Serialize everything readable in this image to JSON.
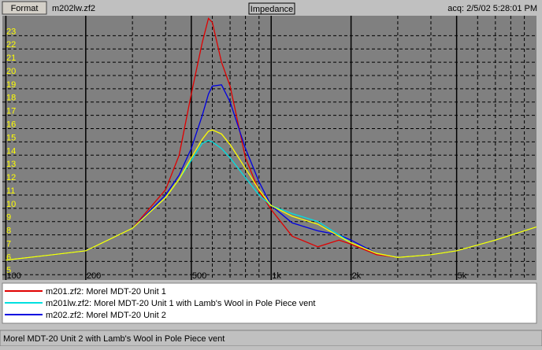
{
  "toolbar": {
    "button": "Format",
    "file": "m202lw.zf2",
    "mode": "Impedance",
    "acq": "acq: 2/5/02 5:28:01 PM"
  },
  "chart_data": {
    "type": "line",
    "xscale": "log",
    "grid": true,
    "xlim": [
      97,
      10000
    ],
    "ylim": [
      4.6,
      24.5
    ],
    "xticks": [
      {
        "value": 100,
        "label": "100"
      },
      {
        "value": 200,
        "label": "200"
      },
      {
        "value": 500,
        "label": "500"
      },
      {
        "value": 1000,
        "label": "1k"
      },
      {
        "value": 2000,
        "label": "2k"
      },
      {
        "value": 5000,
        "label": "5k"
      }
    ],
    "xgrid": [
      300,
      400,
      600,
      700,
      800,
      900,
      3000,
      4000,
      6000,
      7000,
      8000,
      9000
    ],
    "yticks": [
      5,
      6,
      7,
      8,
      9,
      10,
      11,
      12,
      13,
      14,
      15,
      16,
      17,
      18,
      19,
      20,
      21,
      22,
      23
    ],
    "x": [
      100,
      150,
      200,
      300,
      400,
      450,
      500,
      550,
      580,
      600,
      650,
      700,
      800,
      900,
      1000,
      1200,
      1500,
      1800,
      2000,
      2500,
      3000,
      4000,
      5000,
      7000,
      10000
    ],
    "series": [
      {
        "name": "m201.zf2:  Morel MDT-20 Unit 1",
        "color": "#e00000",
        "legend": true,
        "values": [
          6.1,
          6.5,
          6.8,
          8.5,
          11.4,
          14,
          18.6,
          22.5,
          24.3,
          24,
          21,
          19.2,
          13.8,
          11.3,
          9.9,
          7.9,
          7.1,
          7.6,
          7.3,
          6.5,
          6.3,
          6.5,
          6.8,
          7.6,
          8.6
        ]
      },
      {
        "name": "m201lw.zf2:  Morel MDT-20 Unit 1 with Lamb's Wool in Pole Piece vent",
        "color": "#00e0e0",
        "legend": true,
        "values": [
          6.1,
          6.5,
          6.8,
          8.5,
          10.8,
          12.2,
          13.6,
          14.9,
          15.1,
          15,
          14.5,
          13.8,
          12.3,
          11,
          10.2,
          9.6,
          9,
          8,
          7.4,
          6.6,
          6.3,
          6.5,
          6.8,
          7.6,
          8.6
        ]
      },
      {
        "name": "m202.zf2:  Morel MDT-20 Unit 2",
        "color": "#0000e0",
        "legend": true,
        "values": [
          6.1,
          6.5,
          6.8,
          8.5,
          11,
          12.5,
          14.5,
          17,
          18.6,
          19.2,
          19.3,
          18,
          14.5,
          12,
          10.2,
          8.9,
          8.3,
          8,
          7.6,
          6.6,
          6.3,
          6.5,
          6.8,
          7.6,
          8.6
        ]
      },
      {
        "name": "Morel MDT-20 Unit 2 with Lamb's Wool in Pole Piece vent",
        "color": "#ffff00",
        "legend": false,
        "values": [
          6.1,
          6.5,
          6.8,
          8.5,
          10.8,
          12.2,
          13.8,
          15.2,
          15.8,
          15.9,
          15.6,
          14.8,
          13,
          11.4,
          10.2,
          9.4,
          8.8,
          7.9,
          7.4,
          6.6,
          6.3,
          6.5,
          6.8,
          7.6,
          8.6
        ]
      }
    ]
  }
}
